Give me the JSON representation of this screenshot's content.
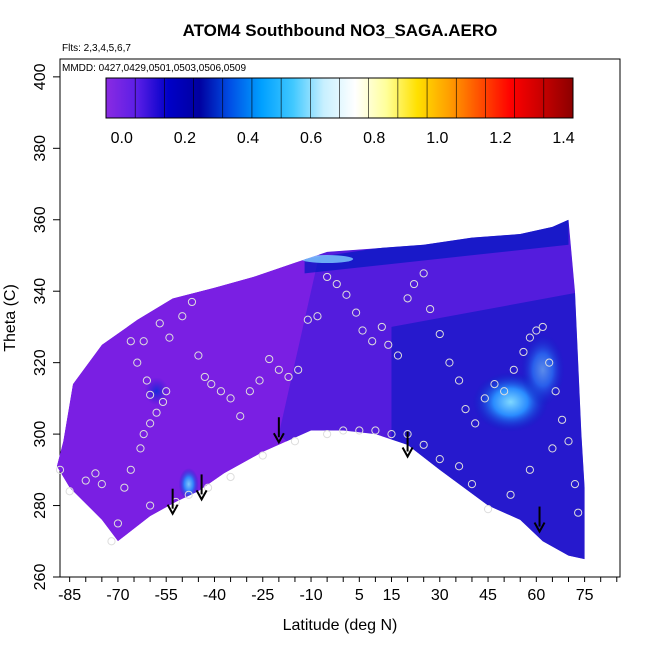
{
  "chart_data": {
    "type": "heatmap",
    "title": "ATOM4 Southbound NO3_SAGA.AERO",
    "subtitle_flights": "Flts: 2,3,4,5,6,7",
    "subtitle_dates": "MMDD: 0427,0429,0501,0503,0506,0509",
    "xlabel": "Latitude (deg N)",
    "ylabel": "Theta (C)",
    "xlim": [
      -88,
      86
    ],
    "ylim": [
      260,
      405
    ],
    "x_ticks": [
      "-85",
      "-70",
      "-55",
      "-40",
      "-25",
      "-10",
      "5",
      "15",
      "30",
      "45",
      "60",
      "75"
    ],
    "x_tick_values": [
      -85,
      -70,
      -55,
      -40,
      -25,
      -10,
      5,
      15,
      30,
      45,
      60,
      75
    ],
    "y_ticks": [
      "260",
      "280",
      "300",
      "320",
      "340",
      "360",
      "380",
      "400"
    ],
    "y_tick_values": [
      260,
      280,
      300,
      320,
      340,
      360,
      380,
      400
    ],
    "colorbar": {
      "range": [
        -0.05,
        1.43
      ],
      "tick_labels": [
        "0.0",
        "0.2",
        "0.4",
        "0.6",
        "0.8",
        "1.0",
        "1.2",
        "1.4"
      ],
      "tick_values": [
        0.0,
        0.2,
        0.4,
        0.6,
        0.8,
        1.0,
        1.2,
        1.4
      ],
      "colors": [
        "#8a2be2",
        "#5a1ee6",
        "#0000c8",
        "#0000a0",
        "#0050e6",
        "#00a0ff",
        "#40c8ff",
        "#c8f0ff",
        "#ffffff",
        "#ffff9a",
        "#ffe000",
        "#ffa000",
        "#ff5000",
        "#ff0000",
        "#c80000",
        "#8b0000"
      ]
    },
    "field_colors": {
      "base": "#7a1fe3",
      "mid": "#3a1ad8",
      "deep": "#0018c0",
      "light": "#2090ff",
      "pale": "#80d0ff"
    },
    "point_color": "#dddddd",
    "arrows_lat": [
      -53,
      -44,
      -20,
      20,
      61
    ],
    "arrows_theta": [
      278,
      282,
      298,
      294,
      273
    ],
    "top_boundary": [
      [
        -89,
        291
      ],
      [
        -87,
        298
      ],
      [
        -84,
        314
      ],
      [
        -75,
        325
      ],
      [
        -64,
        332
      ],
      [
        -53,
        338
      ],
      [
        -40,
        341
      ],
      [
        -28,
        344
      ],
      [
        -15,
        348
      ],
      [
        -5,
        351
      ],
      [
        10,
        352
      ],
      [
        25,
        353
      ],
      [
        40,
        355
      ],
      [
        55,
        356
      ],
      [
        65,
        358
      ],
      [
        70,
        360
      ],
      [
        72,
        340
      ],
      [
        73,
        320
      ],
      [
        74,
        300
      ],
      [
        75,
        285
      ],
      [
        75,
        265
      ]
    ],
    "bottom_boundary": [
      [
        -89,
        291
      ],
      [
        -85,
        285
      ],
      [
        -75,
        276
      ],
      [
        -70,
        270
      ],
      [
        -60,
        277
      ],
      [
        -52,
        281
      ],
      [
        -45,
        284
      ],
      [
        -37,
        289
      ],
      [
        -25,
        295
      ],
      [
        -10,
        301
      ],
      [
        0,
        301
      ],
      [
        10,
        300
      ],
      [
        20,
        297
      ],
      [
        30,
        290
      ],
      [
        45,
        280
      ],
      [
        55,
        276
      ],
      [
        62,
        270
      ],
      [
        70,
        266
      ],
      [
        75,
        265
      ]
    ],
    "observations": [
      [
        -88,
        290
      ],
      [
        -85,
        284
      ],
      [
        -80,
        287
      ],
      [
        -77,
        289
      ],
      [
        -75,
        286
      ],
      [
        -72,
        270
      ],
      [
        -70,
        275
      ],
      [
        -68,
        285
      ],
      [
        -66,
        290
      ],
      [
        -63,
        296
      ],
      [
        -62,
        300
      ],
      [
        -60,
        303
      ],
      [
        -58,
        306
      ],
      [
        -56,
        309
      ],
      [
        -55,
        312
      ],
      [
        -60,
        311
      ],
      [
        -61,
        315
      ],
      [
        -64,
        320
      ],
      [
        -66,
        326
      ],
      [
        -62,
        326
      ],
      [
        -57,
        331
      ],
      [
        -54,
        327
      ],
      [
        -50,
        333
      ],
      [
        -47,
        337
      ],
      [
        -45,
        322
      ],
      [
        -43,
        316
      ],
      [
        -41,
        314
      ],
      [
        -38,
        312
      ],
      [
        -35,
        310
      ],
      [
        -32,
        305
      ],
      [
        -29,
        312
      ],
      [
        -26,
        315
      ],
      [
        -23,
        321
      ],
      [
        -20,
        318
      ],
      [
        -17,
        316
      ],
      [
        -14,
        318
      ],
      [
        -11,
        332
      ],
      [
        -8,
        333
      ],
      [
        -5,
        344
      ],
      [
        -2,
        342
      ],
      [
        1,
        339
      ],
      [
        4,
        334
      ],
      [
        6,
        329
      ],
      [
        9,
        326
      ],
      [
        12,
        330
      ],
      [
        14,
        325
      ],
      [
        17,
        322
      ],
      [
        20,
        338
      ],
      [
        22,
        342
      ],
      [
        25,
        345
      ],
      [
        27,
        335
      ],
      [
        30,
        328
      ],
      [
        33,
        320
      ],
      [
        36,
        315
      ],
      [
        38,
        307
      ],
      [
        41,
        303
      ],
      [
        44,
        310
      ],
      [
        47,
        314
      ],
      [
        50,
        312
      ],
      [
        53,
        318
      ],
      [
        56,
        323
      ],
      [
        58,
        327
      ],
      [
        60,
        329
      ],
      [
        62,
        330
      ],
      [
        64,
        320
      ],
      [
        66,
        312
      ],
      [
        68,
        304
      ],
      [
        70,
        298
      ],
      [
        72,
        286
      ],
      [
        73,
        278
      ],
      [
        65,
        296
      ],
      [
        58,
        290
      ],
      [
        52,
        283
      ],
      [
        45,
        279
      ],
      [
        40,
        286
      ],
      [
        36,
        291
      ],
      [
        30,
        293
      ],
      [
        25,
        297
      ],
      [
        20,
        300
      ],
      [
        15,
        300
      ],
      [
        10,
        301
      ],
      [
        5,
        301
      ],
      [
        0,
        301
      ],
      [
        -5,
        300
      ],
      [
        -15,
        298
      ],
      [
        -25,
        294
      ],
      [
        -35,
        288
      ],
      [
        -42,
        285
      ],
      [
        -48,
        283
      ],
      [
        -52,
        281
      ],
      [
        -60,
        280
      ]
    ]
  }
}
